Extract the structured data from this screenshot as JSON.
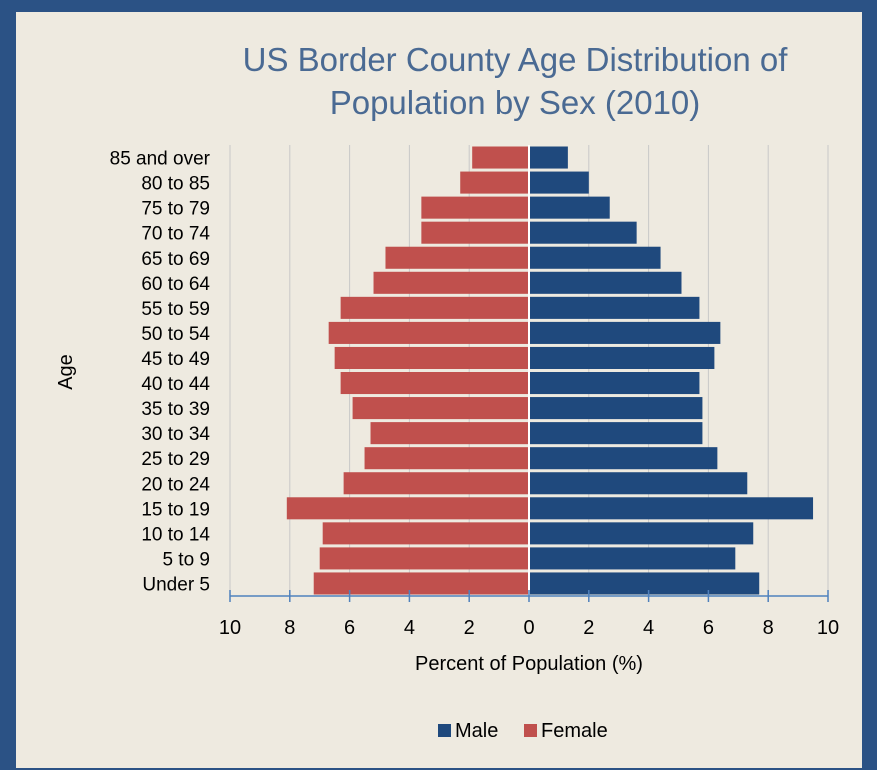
{
  "chart_data": {
    "type": "bar",
    "orientation": "horizontal",
    "title": "US Border County Age Distribution of\nPopulation by Sex (2010)",
    "xlabel": "Percent of Population (%)",
    "ylabel": "Age",
    "categories": [
      "85 and over",
      "80 to 85",
      "75 to 79",
      "70 to 74",
      "65 to 69",
      "60 to 64",
      "55 to 59",
      "50 to 54",
      "45 to 49",
      "40 to 44",
      "35 to 39",
      "30 to 34",
      "25 to 29",
      "20 to 24",
      "15 to 19",
      "10 to 14",
      "5 to 9",
      "Under 5"
    ],
    "series": [
      {
        "name": "Male",
        "color": "#1f497d",
        "values": [
          1.3,
          2.0,
          2.7,
          3.6,
          4.4,
          5.1,
          5.7,
          6.4,
          6.2,
          5.7,
          5.8,
          5.8,
          6.3,
          7.3,
          9.5,
          7.5,
          6.9,
          7.7
        ]
      },
      {
        "name": "Female",
        "color": "#c0504d",
        "values": [
          1.9,
          2.3,
          3.6,
          3.6,
          4.8,
          5.2,
          6.3,
          6.7,
          6.5,
          6.3,
          5.9,
          5.3,
          5.5,
          6.2,
          8.1,
          6.9,
          7.0,
          7.2
        ]
      }
    ],
    "xlim": [
      -10,
      10
    ],
    "xticks": [
      -10,
      -8,
      -6,
      -4,
      -2,
      0,
      2,
      4,
      6,
      8,
      10
    ],
    "xtick_labels": [
      "10",
      "8",
      "6",
      "4",
      "2",
      "0",
      "2",
      "4",
      "6",
      "8",
      "10"
    ],
    "grid": "vertical",
    "legend_position": "bottom"
  }
}
